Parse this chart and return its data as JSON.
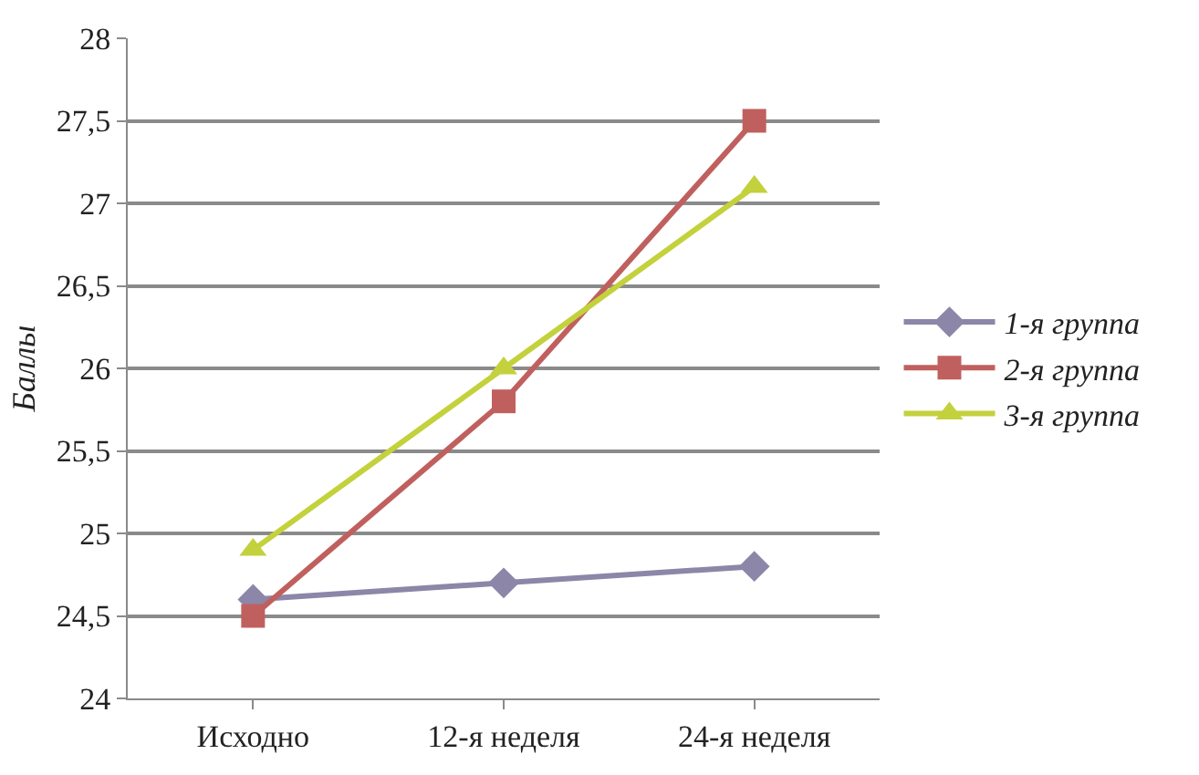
{
  "chart_data": {
    "type": "line",
    "ylabel": "Баллы",
    "categories": [
      "Исходно",
      "12-я неделя",
      "24-я неделя"
    ],
    "series": [
      {
        "name": "1-я группа",
        "color": "#8c86a8",
        "marker": "diamond",
        "values": [
          24.6,
          24.7,
          24.8
        ]
      },
      {
        "name": "2-я группа",
        "color": "#c0605e",
        "marker": "square",
        "values": [
          24.5,
          25.8,
          27.5
        ]
      },
      {
        "name": "3-я группа",
        "color": "#c3d13c",
        "marker": "triangle",
        "values": [
          24.9,
          26.0,
          27.1
        ]
      }
    ],
    "ylim": [
      24,
      28
    ],
    "yticks": [
      24,
      {
        "value": 24.5,
        "label": "24,5"
      },
      25,
      {
        "value": 25.5,
        "label": "25,5"
      },
      26,
      {
        "value": 26.5,
        "label": "26,5"
      },
      27,
      {
        "value": 27.5,
        "label": "27,5"
      },
      28
    ],
    "grid": "y",
    "legend": "right",
    "line_style": "solid"
  }
}
